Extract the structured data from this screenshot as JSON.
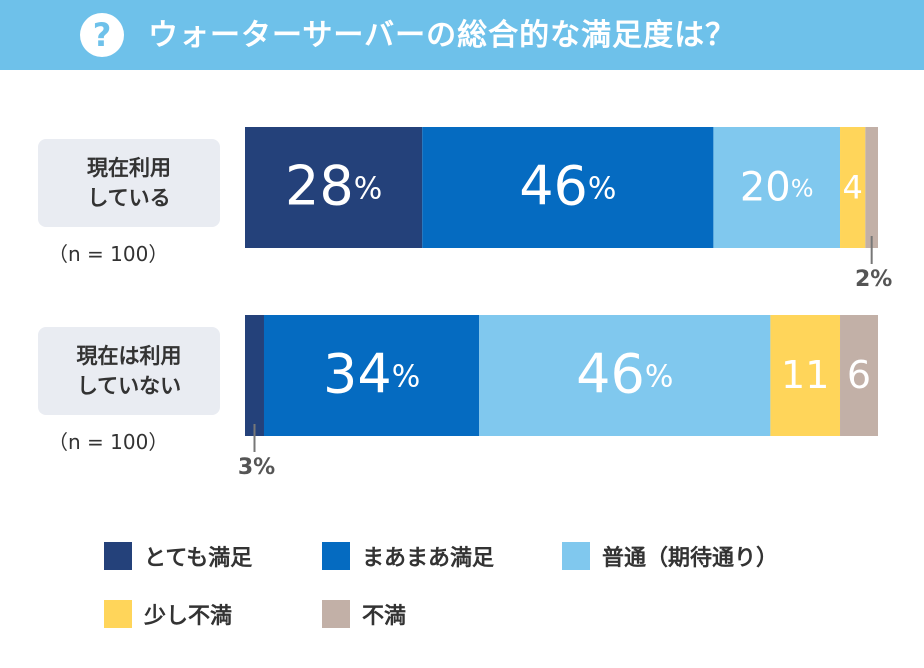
{
  "header": {
    "title": "ウォーターサーバーの総合的な満足度は？",
    "icon": "question-icon",
    "icon_text": "?"
  },
  "colors": {
    "header_bg": "#6ec1ea",
    "very_satisfied": "#24417a",
    "somewhat_satisfied": "#056bc1",
    "normal": "#80c8ee",
    "slightly_dissatisfied": "#ffd55a",
    "dissatisfied": "#c2b0a7"
  },
  "chart_data": {
    "type": "bar",
    "orientation": "horizontal-stacked-100",
    "categories": [
      "現在利用している",
      "現在は利用していない"
    ],
    "category_lines": [
      [
        "現在利用",
        "している"
      ],
      [
        "現在は利用",
        "していない"
      ]
    ],
    "sample_sizes": [
      "（n = 100）",
      "（n = 100）"
    ],
    "unit": "%",
    "series": [
      {
        "name": "とても満足",
        "color": "#24417a",
        "values": [
          28,
          3
        ],
        "labels": [
          "28%",
          "3%"
        ]
      },
      {
        "name": "まあまあ満足",
        "color": "#056bc1",
        "values": [
          46,
          34
        ],
        "labels": [
          "46%",
          "34%"
        ]
      },
      {
        "name": "普通（期待通り）",
        "color": "#80c8ee",
        "values": [
          20,
          46
        ],
        "labels": [
          "20%",
          "46%"
        ]
      },
      {
        "name": "少し不満",
        "color": "#ffd55a",
        "values": [
          4,
          11
        ],
        "labels": [
          "4",
          "11"
        ]
      },
      {
        "name": "不満",
        "color": "#c2b0a7",
        "values": [
          2,
          6
        ],
        "labels": [
          "2%",
          "6"
        ]
      }
    ],
    "legend_position": "bottom"
  }
}
